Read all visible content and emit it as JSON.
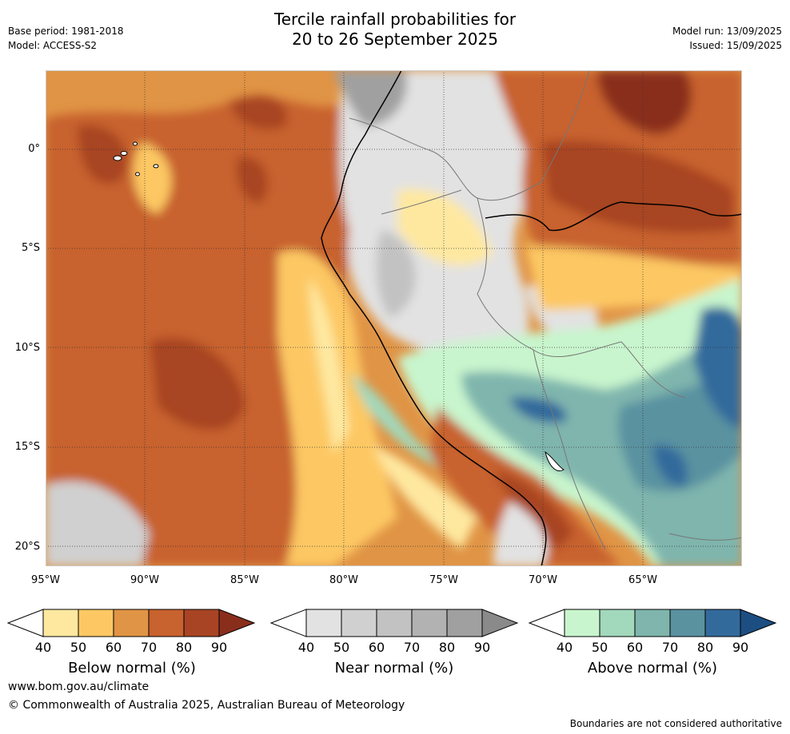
{
  "header": {
    "title_line1": "Tercile rainfall probabilities for",
    "title_line2": "20 to 26 September 2025",
    "base_period": "Base period: 1981-2018",
    "model": "Model: ACCESS-S2",
    "model_run": "Model run: 13/09/2025",
    "issued": "Issued: 15/09/2025"
  },
  "map": {
    "lat_labels": [
      "0°",
      "5°S",
      "10°S",
      "15°S",
      "20°S"
    ],
    "lon_labels": [
      "95°W",
      "90°W",
      "85°W",
      "80°W",
      "75°W",
      "70°W",
      "65°W"
    ],
    "colors": {
      "below": [
        "#fee8a0",
        "#fdc864",
        "#e09445",
        "#c8622e",
        "#a84424",
        "#8a2e1c"
      ],
      "near": [
        "#e2e2e2",
        "#d0d0d0",
        "#c2c2c2",
        "#b2b2b2",
        "#a0a0a0",
        "#8a8a8a"
      ],
      "above": [
        "#c8f5cd",
        "#a2d8bb",
        "#7fb5ad",
        "#5a92a0",
        "#336a9c",
        "#1c4e82"
      ]
    }
  },
  "colorbars": {
    "ticks": [
      "40",
      "50",
      "60",
      "70",
      "80",
      "90"
    ],
    "below_title": "Below normal (%)",
    "near_title": "Near normal (%)",
    "above_title": "Above normal (%)"
  },
  "footer": {
    "website": "www.bom.gov.au/climate",
    "copyright": "© Commonwealth of Australia 2025, Australian Bureau of Meteorology",
    "disclaimer": "Boundaries are not considered authoritative"
  }
}
